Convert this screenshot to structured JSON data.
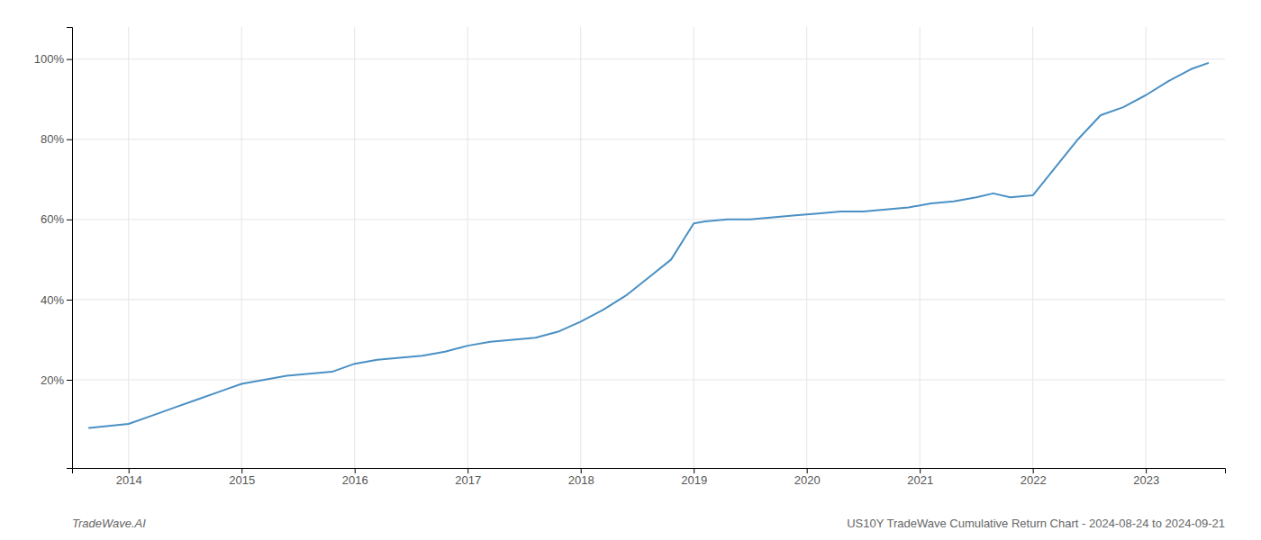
{
  "chart_data": {
    "type": "line",
    "title": "US10Y TradeWave Cumulative Return Chart - 2024-08-24 to 2024-09-21",
    "annotations": [
      "TradeWave.AI"
    ],
    "color": "#4a90c4",
    "grid": true,
    "x": [
      2013.65,
      2014.0,
      2014.2,
      2014.4,
      2014.6,
      2014.8,
      2015.0,
      2015.2,
      2015.4,
      2015.6,
      2015.8,
      2016.0,
      2016.2,
      2016.4,
      2016.6,
      2016.8,
      2017.0,
      2017.2,
      2017.4,
      2017.6,
      2017.8,
      2018.0,
      2018.2,
      2018.4,
      2018.6,
      2018.8,
      2019.0,
      2019.1,
      2019.3,
      2019.5,
      2019.7,
      2019.9,
      2020.1,
      2020.3,
      2020.5,
      2020.7,
      2020.9,
      2021.1,
      2021.3,
      2021.5,
      2021.65,
      2021.8,
      2022.0,
      2022.2,
      2022.4,
      2022.6,
      2022.8,
      2023.0,
      2023.2,
      2023.4,
      2023.55
    ],
    "values": [
      0.08,
      0.09,
      0.11,
      0.13,
      0.15,
      0.17,
      0.19,
      0.2,
      0.21,
      0.215,
      0.22,
      0.24,
      0.25,
      0.255,
      0.26,
      0.27,
      0.285,
      0.295,
      0.3,
      0.305,
      0.32,
      0.345,
      0.375,
      0.41,
      0.455,
      0.5,
      0.59,
      0.595,
      0.6,
      0.6,
      0.605,
      0.61,
      0.615,
      0.62,
      0.62,
      0.625,
      0.63,
      0.64,
      0.645,
      0.655,
      0.665,
      0.655,
      0.66,
      0.73,
      0.8,
      0.86,
      0.88,
      0.91,
      0.945,
      0.975,
      0.99
    ],
    "xlim": [
      2013.5,
      2023.7
    ],
    "ylim": [
      -0.02,
      1.08
    ],
    "xticks": [
      2014,
      2015,
      2016,
      2017,
      2018,
      2019,
      2020,
      2021,
      2022,
      2023
    ],
    "yticks": [
      {
        "value": 0.2,
        "label": "20%"
      },
      {
        "value": 0.4,
        "label": "40%"
      },
      {
        "value": 0.6,
        "label": "60%"
      },
      {
        "value": 0.8,
        "label": "80%"
      },
      {
        "value": 1.0,
        "label": "100%"
      }
    ]
  }
}
